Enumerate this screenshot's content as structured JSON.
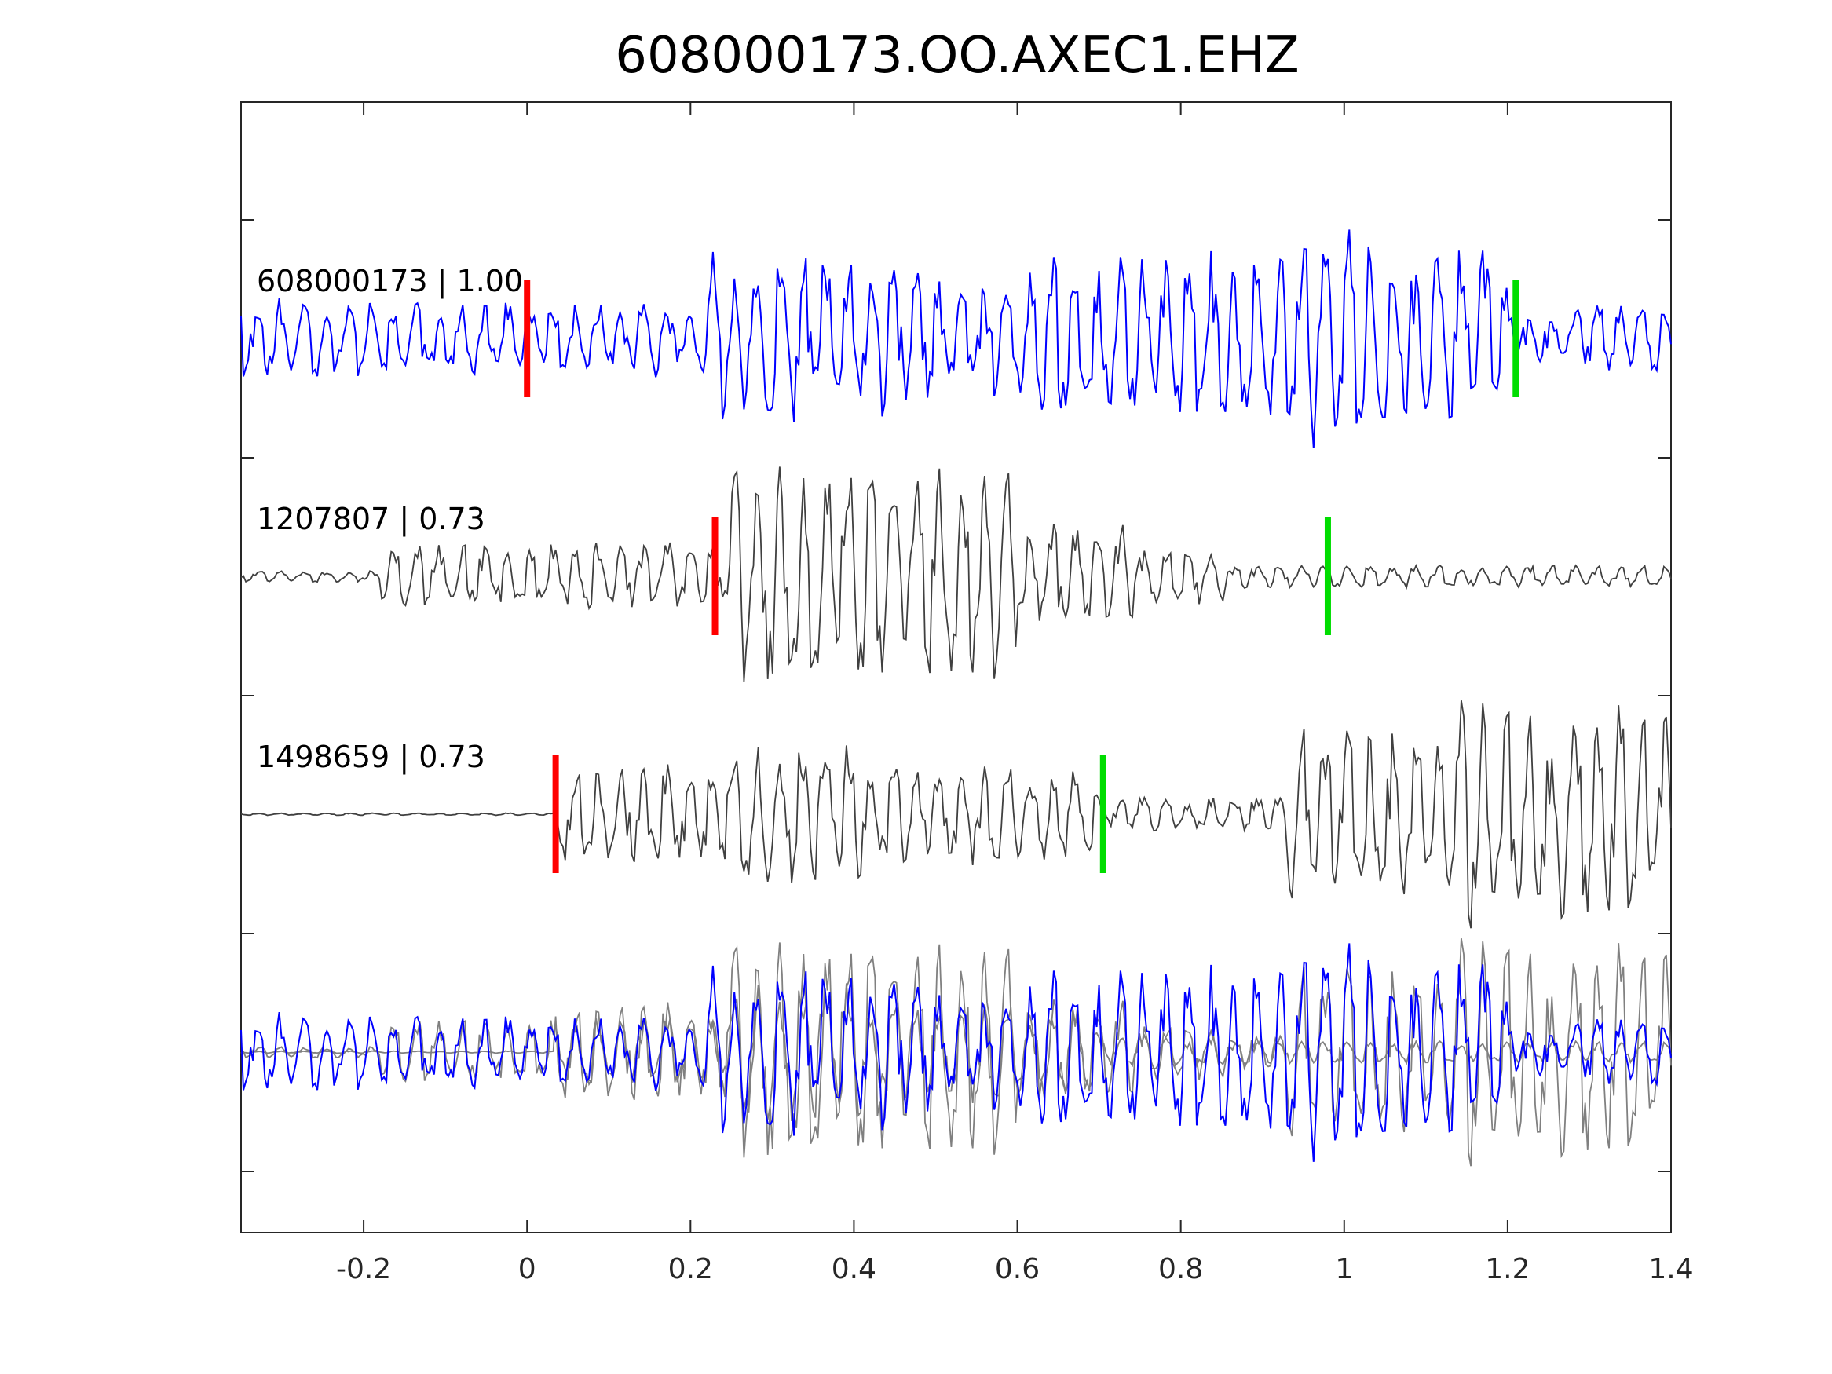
{
  "chart_data": {
    "type": "line",
    "title": "608000173.OO.AXEC1.EHZ",
    "xlabel": "",
    "ylabel": "",
    "xlim": [
      -0.35,
      1.4
    ],
    "xticks": [
      -0.2,
      0,
      0.2,
      0.4,
      0.6,
      0.8,
      1,
      1.2,
      1.4
    ],
    "xtick_labels": [
      "-0.2",
      "0",
      "0.2",
      "0.4",
      "0.6",
      "0.8",
      "1",
      "1.2",
      "1.4"
    ],
    "grid": false,
    "colors": {
      "template": "#0000ff",
      "match": "#404040",
      "overlay_match": "#808080",
      "p_pick": "#ff0000",
      "s_pick": "#00dd00",
      "axes": "#262626"
    },
    "traces": [
      {
        "label": "608000173 | 1.00",
        "event_id": "608000173",
        "cc": 1.0,
        "p_pick": 0.0,
        "s_pick": 1.21,
        "color": "#0000ff"
      },
      {
        "label": "1207807 | 0.73",
        "event_id": "1207807",
        "cc": 0.73,
        "p_pick": 0.23,
        "s_pick": 0.98,
        "color": "#404040"
      },
      {
        "label": "1498659 | 0.73",
        "event_id": "1498659",
        "cc": 0.73,
        "p_pick": 0.035,
        "s_pick": 0.705,
        "color": "#404040"
      }
    ],
    "overlay": "all traces superimposed"
  }
}
